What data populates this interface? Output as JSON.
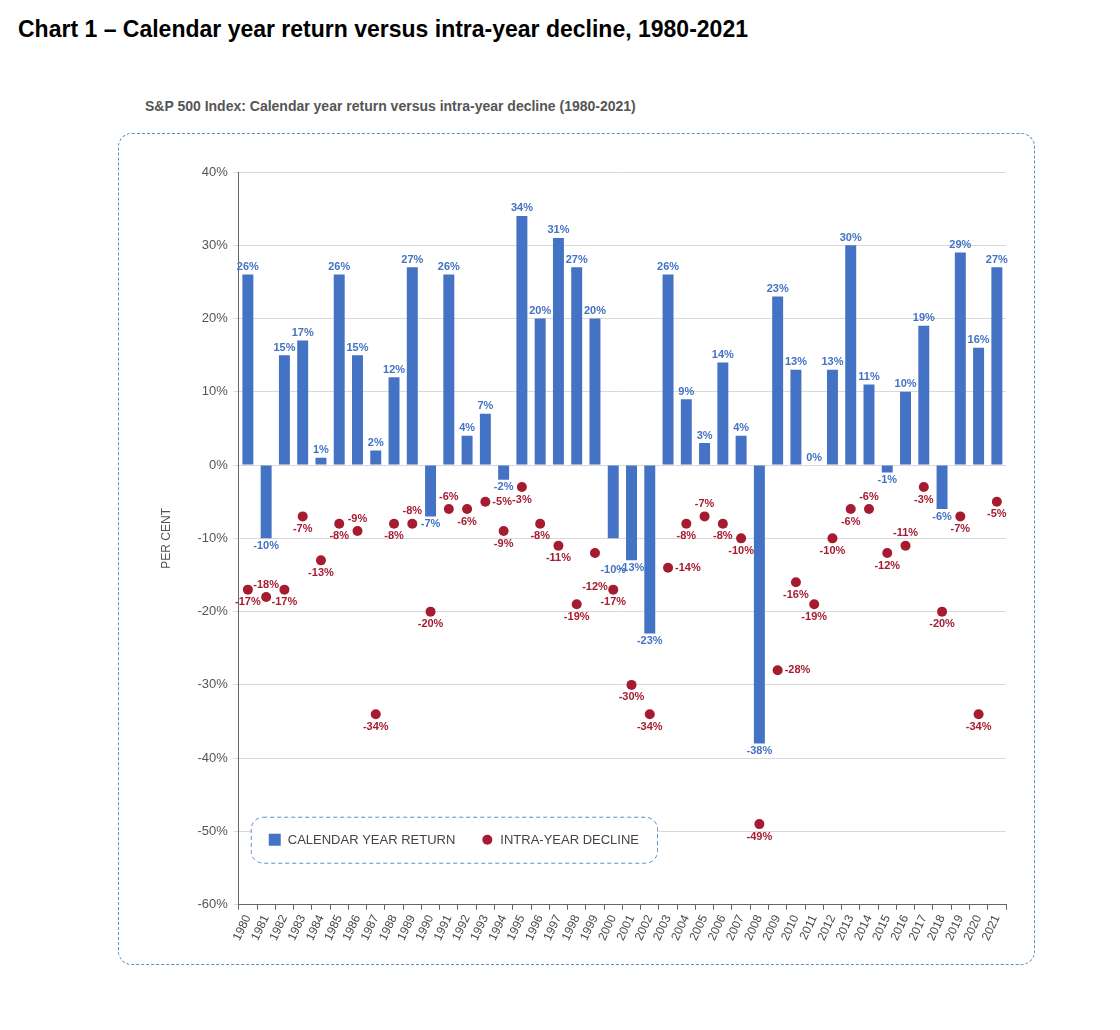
{
  "chart_data": {
    "type": "bar",
    "title": "Chart 1 – Calendar year return versus intra-year decline, 1980-2021",
    "subtitle": "S&P 500 Index: Calendar year return versus intra-year decline (1980-2021)",
    "y_label": "PER CENT",
    "categories": [
      "1980",
      "1981",
      "1982",
      "1983",
      "1984",
      "1985",
      "1986",
      "1987",
      "1988",
      "1989",
      "1990",
      "1991",
      "1992",
      "1993",
      "1994",
      "1995",
      "1996",
      "1997",
      "1998",
      "1999",
      "2000",
      "2001",
      "2002",
      "2003",
      "2004",
      "2005",
      "2006",
      "2007",
      "2008",
      "2009",
      "2010",
      "2011",
      "2012",
      "2013",
      "2014",
      "2015",
      "2016",
      "2017",
      "2018",
      "2019",
      "2020",
      "2021"
    ],
    "series": [
      {
        "name": "CALENDAR YEAR RETURN",
        "type": "bar",
        "color": "#4472c4",
        "values": [
          26,
          -10,
          15,
          17,
          1,
          26,
          15,
          2,
          12,
          27,
          -7,
          26,
          4,
          7,
          -2,
          34,
          20,
          31,
          27,
          20,
          -10,
          -13,
          -23,
          26,
          9,
          3,
          14,
          4,
          -38,
          23,
          13,
          0,
          13,
          30,
          11,
          -1,
          10,
          19,
          -6,
          29,
          16,
          27
        ],
        "value_labels": [
          "26%",
          "-10%",
          "15%",
          "17%",
          "1%",
          "26%",
          "15%",
          "2%",
          "12%",
          "27%",
          "-7%",
          "26%",
          "4%",
          "7%",
          "-2%",
          "34%",
          "20%",
          "31%",
          "27%",
          "20%",
          "-10%",
          "-13%",
          "-23%",
          "26%",
          "9%",
          "3%",
          "14%",
          "4%",
          "-38%",
          "23%",
          "13%",
          "0%",
          "13%",
          "30%",
          "11%",
          "-1%",
          "10%",
          "19%",
          "-6%",
          "29%",
          "16%",
          "27%"
        ]
      },
      {
        "name": "INTRA-YEAR DECLINE",
        "type": "scatter",
        "marker": "circle",
        "color": "#a51c30",
        "values": [
          -17,
          -18,
          -17,
          -7,
          -13,
          -8,
          -9,
          -34,
          -8,
          -8,
          -20,
          -6,
          -6,
          -5,
          -9,
          -3,
          -8,
          -11,
          -19,
          -12,
          -17,
          -30,
          -34,
          -14,
          -8,
          -7,
          -8,
          -10,
          -49,
          -28,
          -16,
          -19,
          -10,
          -6,
          -6,
          -12,
          -11,
          -3,
          -20,
          -7,
          -34,
          -5
        ],
        "value_labels": [
          "-17%",
          "-18%",
          "-17%",
          "-7%",
          "-13%",
          "-8%",
          "-9%",
          "-34%",
          "-8%",
          "-8%",
          "-20%",
          "-6%",
          "-6%",
          "-5%",
          "-9%",
          "-3%",
          "-8%",
          "-11%",
          "-19%",
          "-12%",
          "-17%",
          "-30%",
          "-34%",
          "-14%",
          "-8%",
          "-7%",
          "-8%",
          "-10%",
          "-49%",
          "-28%",
          "-16%",
          "-19%",
          "-10%",
          "-6%",
          "-6%",
          "-12%",
          "-11%",
          "-3%",
          "-20%",
          "-7%",
          "-34%",
          "-5%"
        ]
      }
    ],
    "ylim": [
      -60,
      40
    ],
    "yticks": [
      {
        "value": -60,
        "label": "-60%"
      },
      {
        "value": -50,
        "label": "-50%"
      },
      {
        "value": -40,
        "label": "-40%"
      },
      {
        "value": -30,
        "label": "-30%"
      },
      {
        "value": -20,
        "label": "-20%"
      },
      {
        "value": -10,
        "label": "-10%"
      },
      {
        "value": 0,
        "label": "0%"
      },
      {
        "value": 10,
        "label": "10%"
      },
      {
        "value": 20,
        "label": "20%"
      },
      {
        "value": 30,
        "label": "30%"
      },
      {
        "value": 40,
        "label": "40%"
      }
    ],
    "grid": true,
    "legend": "lower left",
    "data_labels": true
  }
}
